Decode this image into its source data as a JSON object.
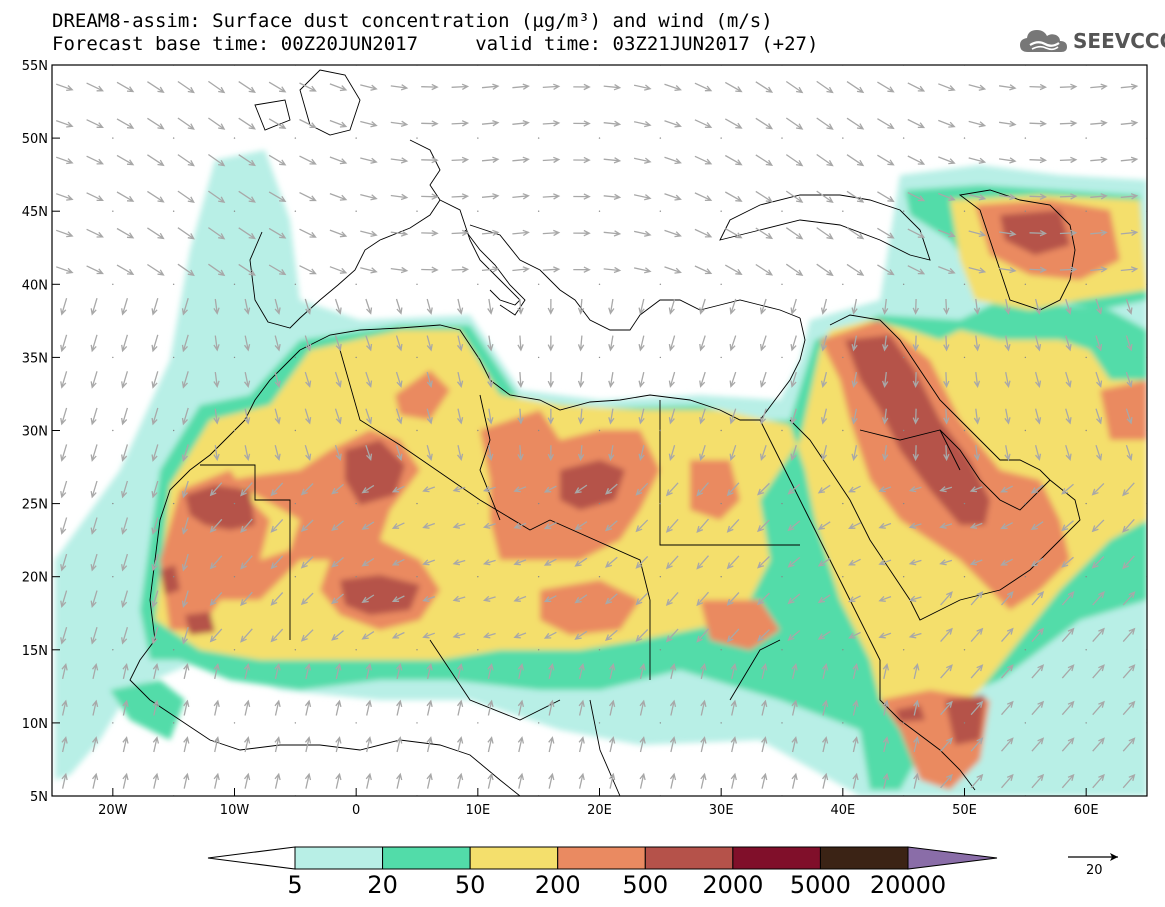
{
  "header": {
    "title_line1": "DREAM8-assim: Surface dust concentration (µg/m³) and wind (m/s)",
    "title_line2": "Forecast base time: 00Z20JUN2017     valid time: 03Z21JUN2017 (+27)"
  },
  "logo": {
    "text": "SEEVCCC",
    "icon": "cloud-logo-icon"
  },
  "map": {
    "lat_labels": [
      "55N",
      "50N",
      "45N",
      "40N",
      "35N",
      "30N",
      "25N",
      "20N",
      "15N",
      "10N",
      "5N"
    ],
    "lat_values": [
      55,
      50,
      45,
      40,
      35,
      30,
      25,
      20,
      15,
      10,
      5
    ],
    "lon_labels": [
      "20W",
      "10W",
      "0",
      "10E",
      "20E",
      "30E",
      "40E",
      "50E",
      "60E"
    ],
    "lon_values": [
      -20,
      -10,
      0,
      10,
      20,
      30,
      40,
      50,
      60
    ],
    "extent": {
      "lon_min": -25,
      "lon_max": 65,
      "lat_min": 5,
      "lat_max": 55
    }
  },
  "colorbar": {
    "labels": [
      "5",
      "20",
      "50",
      "200",
      "500",
      "2000",
      "5000",
      "20000"
    ],
    "colors": [
      "#b8efe6",
      "#52dca9",
      "#f4df6c",
      "#ea8a61",
      "#b5524a",
      "#800f2a",
      "#3b2315"
    ],
    "under_color": "#ffffff",
    "over_color": "#8a6da8"
  },
  "wind_reference": {
    "label": "20"
  }
}
